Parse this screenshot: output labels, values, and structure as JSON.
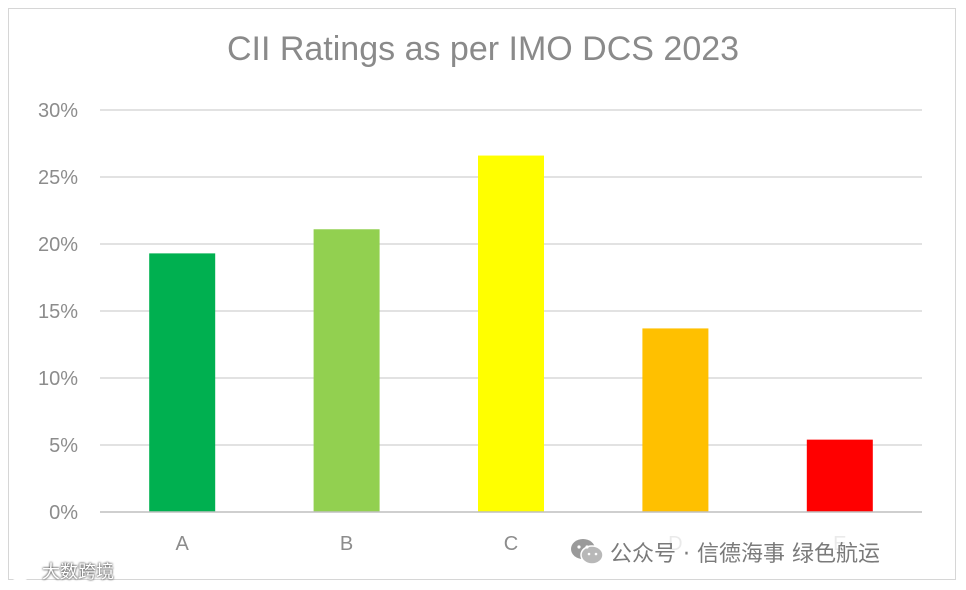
{
  "chart_data": {
    "type": "bar",
    "title": "CII Ratings as per IMO DCS 2023",
    "categories": [
      "A",
      "B",
      "C",
      "D",
      "E"
    ],
    "values": [
      19.3,
      21.1,
      26.6,
      13.7,
      5.4
    ],
    "colors": [
      "#00b050",
      "#92d050",
      "#ffff00",
      "#ffc000",
      "#ff0000"
    ],
    "ylim": [
      0,
      30
    ],
    "yticks": [
      0,
      5,
      10,
      15,
      20,
      25,
      30
    ],
    "ytick_labels": [
      "0%",
      "5%",
      "10%",
      "15%",
      "20%",
      "25%",
      "30%"
    ],
    "grid": true,
    "xlabel": "",
    "ylabel": ""
  },
  "watermarks": {
    "wechat_text": "公众号 · 信德海事 绿色航运",
    "weibo_text": "大数跨境",
    "wechat_icon": "wechat-icon",
    "weibo_icon": "weibo-icon"
  }
}
